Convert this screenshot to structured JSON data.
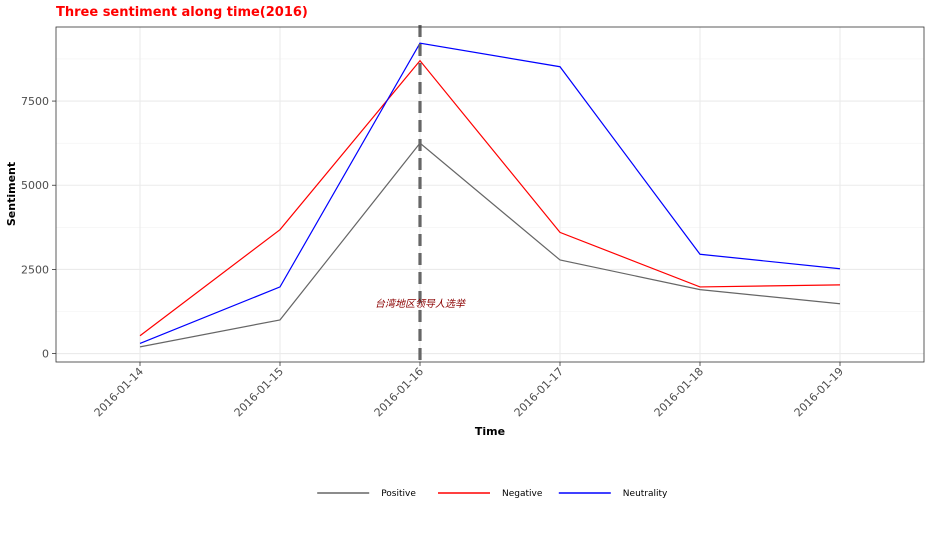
{
  "chart_data": {
    "type": "line",
    "title": "Three sentiment along time(2016)",
    "xlabel": "Time",
    "ylabel": "Sentiment",
    "x": [
      "2016-01-14",
      "2016-01-15",
      "2016-01-16",
      "2016-01-17",
      "2016-01-18",
      "2016-01-19"
    ],
    "yticks": [
      0,
      2500,
      5000,
      7500
    ],
    "yticklabels": [
      "0",
      "2500",
      "5000",
      "7500"
    ],
    "ylim": [
      -250,
      9700
    ],
    "xlim_index": [
      -0.6,
      5.6
    ],
    "grid": true,
    "legend_position": "bottom",
    "series": [
      {
        "name": "Positive",
        "color": "#666666",
        "values": [
          200,
          1000,
          6250,
          2780,
          1900,
          1480
        ]
      },
      {
        "name": "Negative",
        "color": "#ff0000",
        "values": [
          530,
          3680,
          8700,
          3600,
          1980,
          2040
        ]
      },
      {
        "name": "Neutrality",
        "color": "#0000ff",
        "values": [
          300,
          1980,
          9220,
          8520,
          2950,
          2520
        ]
      }
    ],
    "vline": {
      "x": "2016-01-16",
      "color": "#666666"
    },
    "annotation": {
      "text": "台湾地区领导人选举",
      "x": "2016-01-16",
      "y": 1500
    }
  }
}
